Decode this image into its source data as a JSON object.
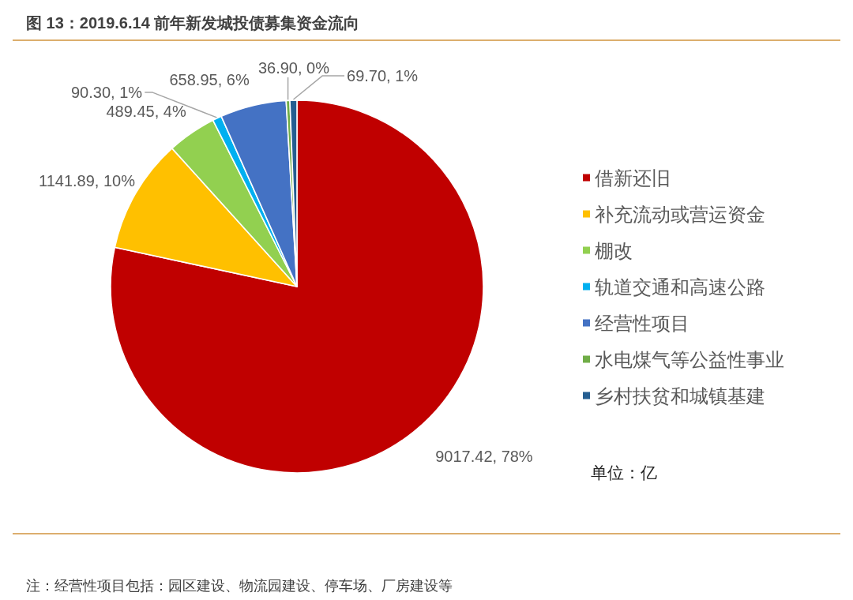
{
  "chart_data": {
    "type": "pie",
    "title": "图 13：2019.6.14 前年新发城投债募集资金流向",
    "categories": [
      "借新还旧",
      "补充流动或营运资金",
      "棚改",
      "轨道交通和高速公路",
      "经营性项目",
      "水电煤气等公益性事业",
      "乡村扶贫和城镇基建"
    ],
    "values": [
      9017.42,
      1141.89,
      489.45,
      90.3,
      658.95,
      36.9,
      69.7
    ],
    "colors": [
      "#c00000",
      "#ffc000",
      "#92d050",
      "#00b0f0",
      "#4472c4",
      "#70ad47",
      "#255e91"
    ],
    "value_labels": [
      "9017.42, 78%",
      "1141.89, 10%",
      "489.45, 4%",
      "90.30, 1%",
      "658.95, 6%",
      "36.90, 0%",
      "69.70, 1%"
    ],
    "legend": "right",
    "annotations": [
      "单位：亿",
      "注：经营性项目包括：园区建设、物流园建设、停车场、厂房建设等"
    ]
  }
}
